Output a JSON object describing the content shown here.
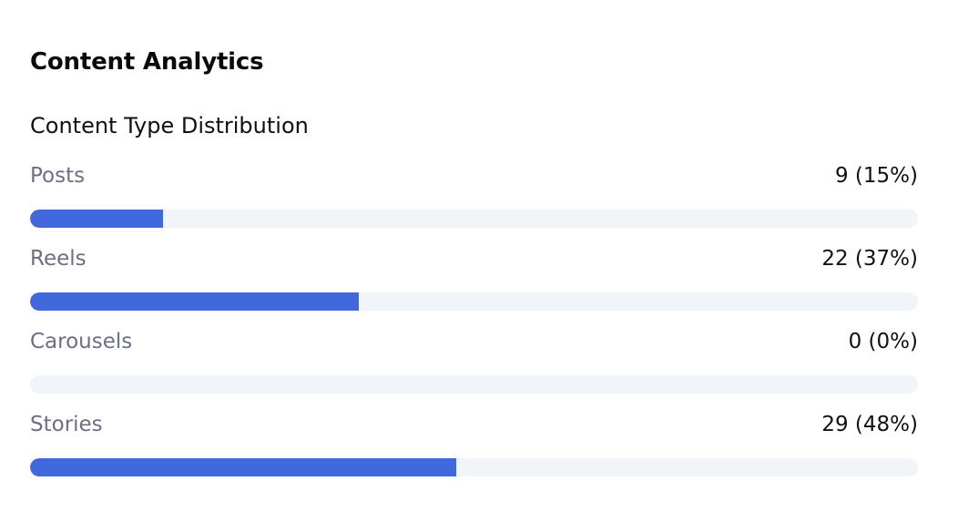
{
  "card": {
    "title": "Content Analytics",
    "section_title": "Content Type Distribution"
  },
  "distribution": [
    {
      "label": "Posts",
      "value_text": "9 (15%)",
      "fraction": 0.15
    },
    {
      "label": "Reels",
      "value_text": "22 (37%)",
      "fraction": 0.37
    },
    {
      "label": "Carousels",
      "value_text": "0 (0%)",
      "fraction": 0.0
    },
    {
      "label": "Stories",
      "value_text": "29 (48%)",
      "fraction": 0.48
    }
  ],
  "colors": {
    "bar_fill": "#4169dd",
    "track": "#f1f4f9",
    "label": "#6b6f85"
  }
}
